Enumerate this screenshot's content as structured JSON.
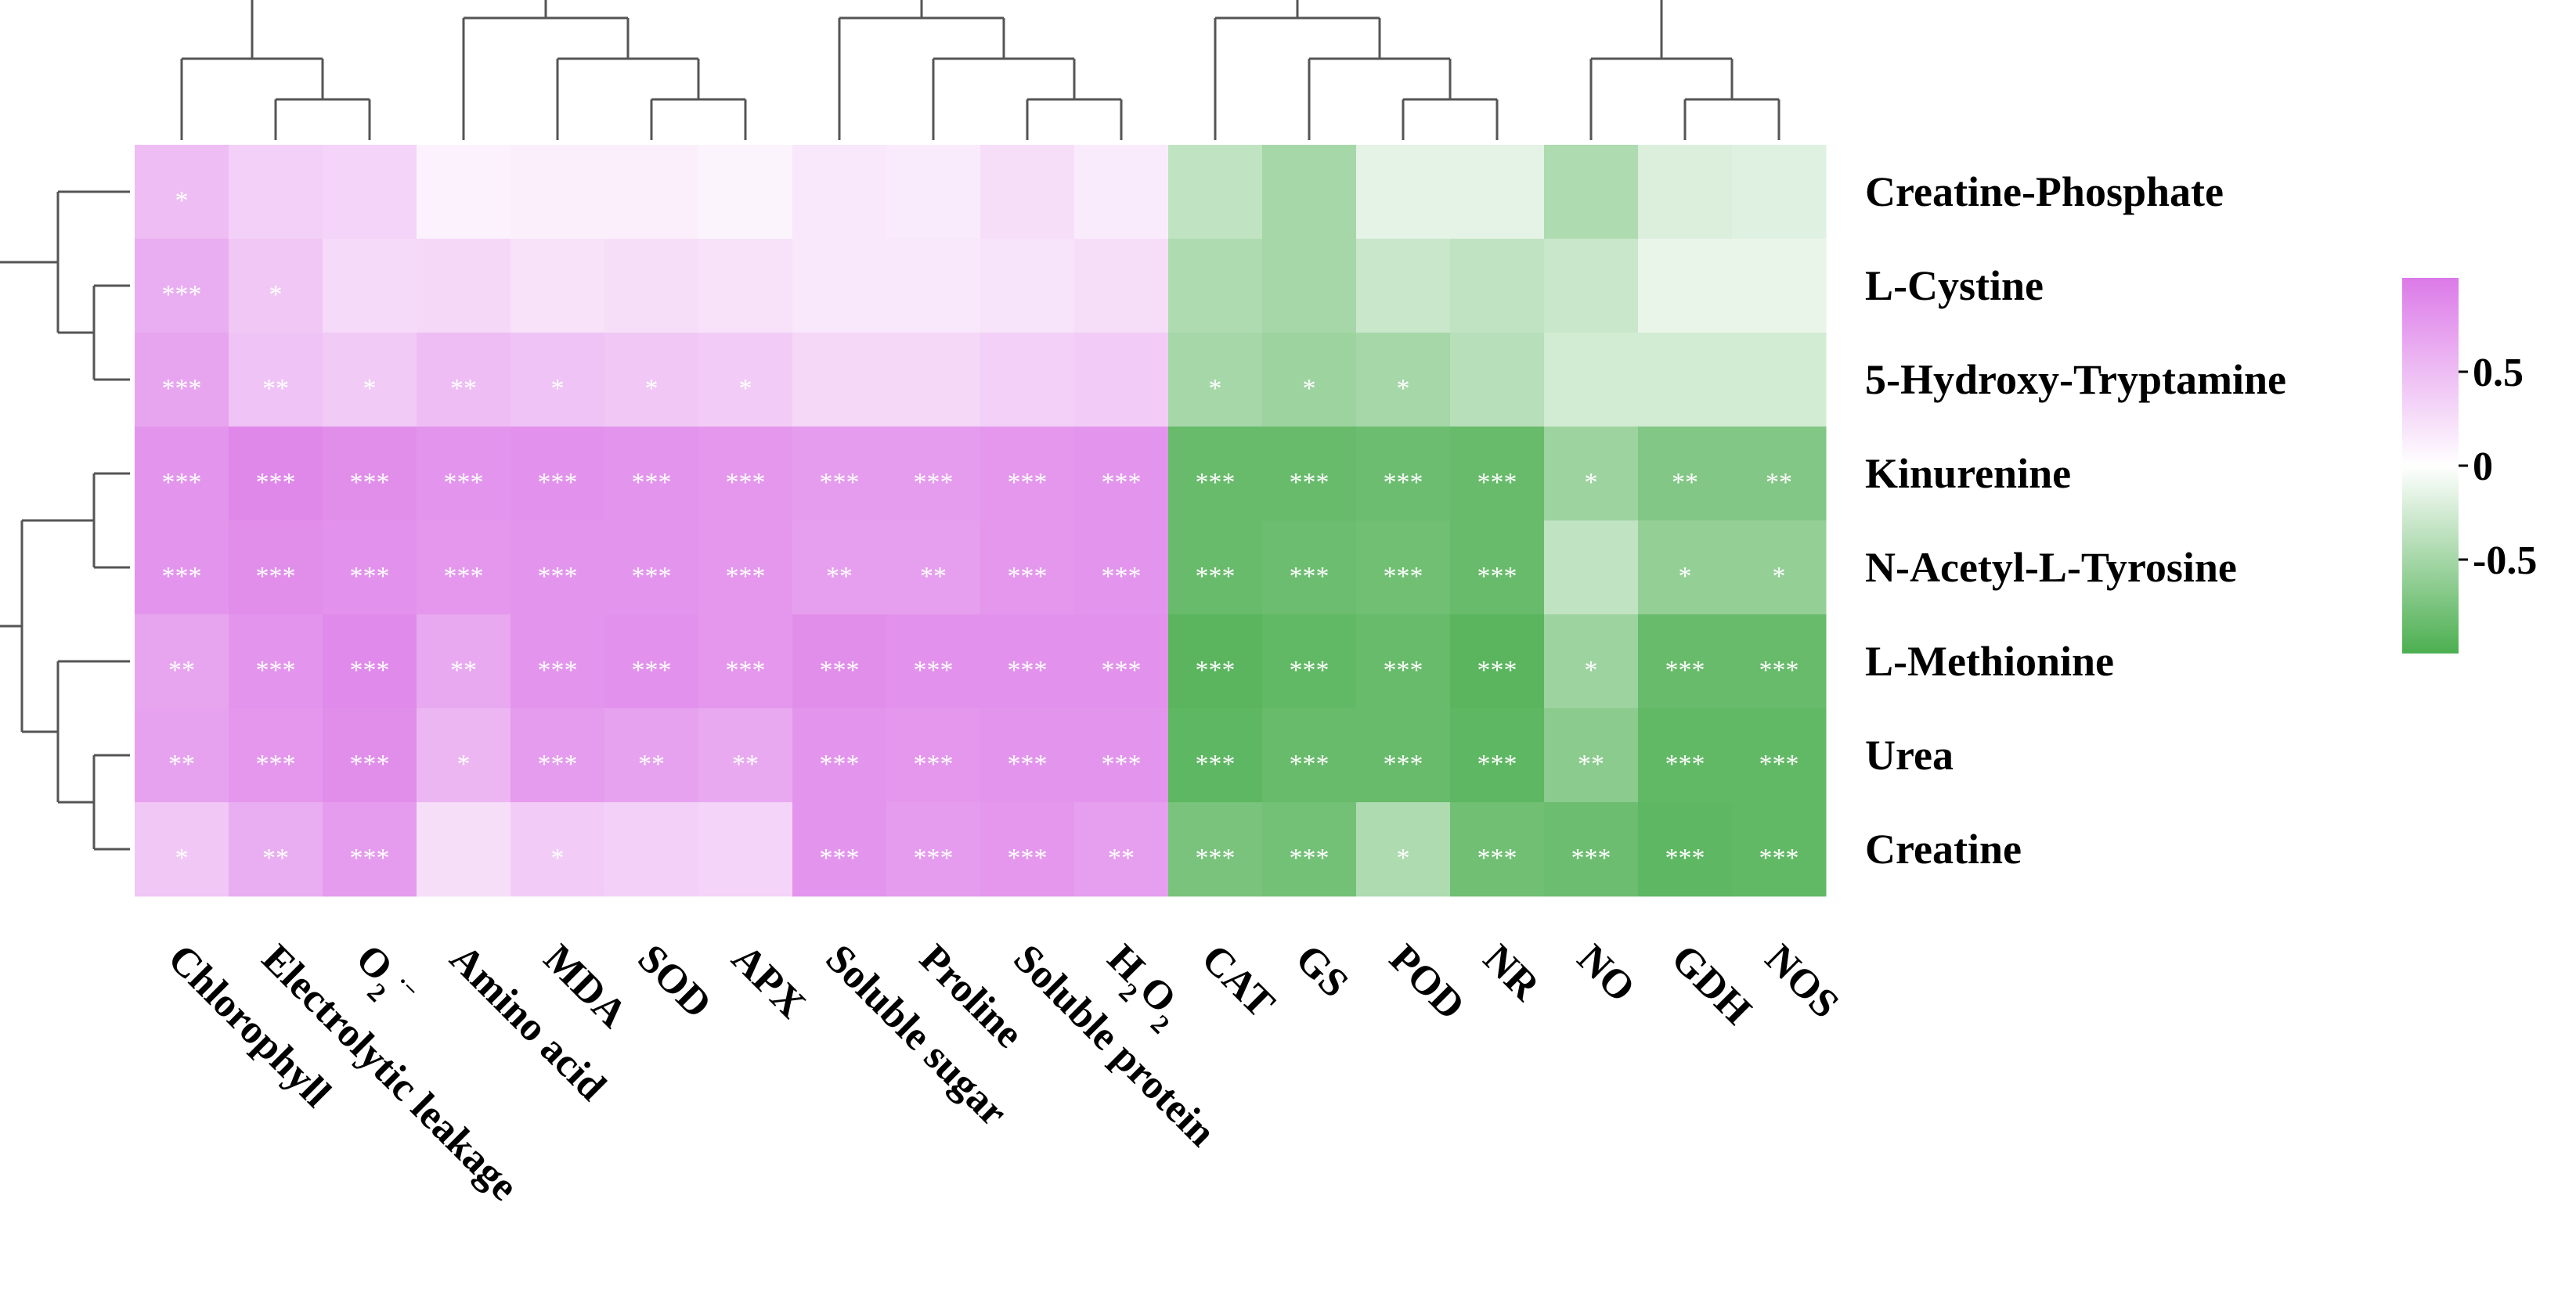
{
  "chart_data": {
    "type": "heatmap",
    "title": "",
    "xlabel": "",
    "ylabel": "",
    "rows": [
      "Creatine-Phosphate",
      "L-Cystine",
      "5-Hydroxy-Tryptamine",
      "Kinurenine",
      "N-Acetyl-L-Tyrosine",
      "L-Methionine",
      "Urea",
      "Creatine"
    ],
    "columns": [
      "Chlorophyll",
      "Electrolytic leakage",
      "O2·−",
      "Amino acid",
      "MDA",
      "SOD",
      "APX",
      "Soluble sugar",
      "Proline",
      "Soluble protein",
      "H2O2",
      "CAT",
      "GS",
      "POD",
      "NR",
      "NO",
      "GDH",
      "NOS"
    ],
    "column_label_parts": [
      {
        "main": "Chlorophyll"
      },
      {
        "main": "Electrolytic leakage"
      },
      {
        "main": "O",
        "sub": "2",
        "sup": "·−"
      },
      {
        "main": "Amino acid"
      },
      {
        "main": "MDA"
      },
      {
        "main": "SOD"
      },
      {
        "main": "APX"
      },
      {
        "main": "Soluble sugar"
      },
      {
        "main": "Proline"
      },
      {
        "main": "Soluble protein"
      },
      {
        "main": "H",
        "sub": "2",
        "main2": "O",
        "sub2": "2"
      },
      {
        "main": "CAT"
      },
      {
        "main": "GS"
      },
      {
        "main": "POD"
      },
      {
        "main": "NR"
      },
      {
        "main": "NO"
      },
      {
        "main": "GDH"
      },
      {
        "main": "NOS"
      }
    ],
    "values": [
      [
        0.5,
        0.35,
        0.32,
        0.1,
        0.12,
        0.12,
        0.08,
        0.18,
        0.15,
        0.25,
        0.15,
        -0.35,
        -0.5,
        -0.15,
        -0.15,
        -0.45,
        -0.2,
        -0.18
      ],
      [
        0.62,
        0.42,
        0.28,
        0.3,
        0.22,
        0.25,
        0.22,
        0.18,
        0.18,
        0.2,
        0.25,
        -0.45,
        -0.5,
        -0.3,
        -0.35,
        -0.3,
        -0.12,
        -0.12
      ],
      [
        0.68,
        0.45,
        0.4,
        0.5,
        0.45,
        0.42,
        0.38,
        0.3,
        0.3,
        0.35,
        0.38,
        -0.5,
        -0.55,
        -0.5,
        -0.4,
        -0.25,
        -0.25,
        -0.25
      ],
      [
        0.8,
        0.9,
        0.85,
        0.8,
        0.82,
        0.8,
        0.78,
        0.75,
        0.75,
        0.78,
        0.8,
        -0.85,
        -0.85,
        -0.82,
        -0.85,
        -0.55,
        -0.7,
        -0.7
      ],
      [
        0.8,
        0.85,
        0.82,
        0.78,
        0.8,
        0.8,
        0.78,
        0.72,
        0.72,
        0.78,
        0.8,
        -0.85,
        -0.82,
        -0.8,
        -0.85,
        -0.35,
        -0.6,
        -0.6
      ],
      [
        0.68,
        0.8,
        0.88,
        0.65,
        0.8,
        0.82,
        0.78,
        0.85,
        0.82,
        0.82,
        0.82,
        -0.92,
        -0.88,
        -0.85,
        -0.92,
        -0.55,
        -0.85,
        -0.85
      ],
      [
        0.7,
        0.78,
        0.85,
        0.55,
        0.75,
        0.7,
        0.65,
        0.8,
        0.78,
        0.8,
        0.8,
        -0.9,
        -0.85,
        -0.85,
        -0.9,
        -0.65,
        -0.88,
        -0.88
      ],
      [
        0.42,
        0.62,
        0.75,
        0.25,
        0.38,
        0.35,
        0.32,
        0.8,
        0.75,
        0.78,
        0.72,
        -0.75,
        -0.78,
        -0.45,
        -0.8,
        -0.82,
        -0.9,
        -0.88
      ]
    ],
    "significance": [
      [
        "*",
        "",
        "",
        "",
        "",
        "",
        "",
        "",
        "",
        "",
        "",
        "",
        "",
        "",
        "",
        "",
        "",
        ""
      ],
      [
        "***",
        "*",
        "",
        "",
        "",
        "",
        "",
        "",
        "",
        "",
        "",
        "",
        "",
        "",
        "",
        "",
        "",
        ""
      ],
      [
        "***",
        "**",
        "*",
        "**",
        "*",
        "*",
        "*",
        "",
        "",
        "",
        "",
        "*",
        "*",
        "*",
        "",
        "",
        "",
        ""
      ],
      [
        "***",
        "***",
        "***",
        "***",
        "***",
        "***",
        "***",
        "***",
        "***",
        "***",
        "***",
        "***",
        "***",
        "***",
        "***",
        "*",
        "**",
        "**"
      ],
      [
        "***",
        "***",
        "***",
        "***",
        "***",
        "***",
        "***",
        "**",
        "**",
        "***",
        "***",
        "***",
        "***",
        "***",
        "***",
        "",
        "*",
        "*"
      ],
      [
        "**",
        "***",
        "***",
        "**",
        "***",
        "***",
        "***",
        "***",
        "***",
        "***",
        "***",
        "***",
        "***",
        "***",
        "***",
        "*",
        "***",
        "***"
      ],
      [
        "**",
        "***",
        "***",
        "*",
        "***",
        "**",
        "**",
        "***",
        "***",
        "***",
        "***",
        "***",
        "***",
        "***",
        "***",
        "**",
        "***",
        "***"
      ],
      [
        "*",
        "**",
        "***",
        "",
        "*",
        "",
        "",
        "***",
        "***",
        "***",
        "**",
        "***",
        "***",
        "*",
        "***",
        "***",
        "***",
        "***"
      ]
    ],
    "color_scale": {
      "low": "#4caf50",
      "mid": "#ffffff",
      "high": "#dc7ae8",
      "range": [
        -1,
        1
      ],
      "ticks": [
        {
          "value": 0.5,
          "label": "0.5"
        },
        {
          "value": 0,
          "label": "0"
        },
        {
          "value": -0.5,
          "label": "-0.5"
        }
      ]
    },
    "column_dendrogram": true,
    "row_dendrogram": true,
    "legend_position": "right"
  }
}
